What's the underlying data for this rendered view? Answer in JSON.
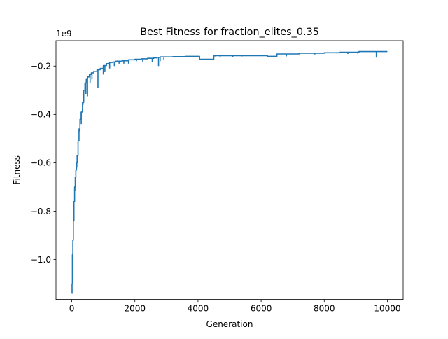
{
  "chart_data": {
    "type": "line",
    "title": "Best Fitness for fraction_elites_0.35",
    "xlabel": "Generation",
    "ylabel": "Fitness",
    "y_offset_label": "1e9",
    "xlim": [
      -500,
      10500
    ],
    "ylim": [
      -1.165,
      -0.095
    ],
    "xticks": [
      0,
      2000,
      4000,
      6000,
      8000,
      10000
    ],
    "xtick_labels": [
      "0",
      "2000",
      "4000",
      "6000",
      "8000",
      "10000"
    ],
    "yticks": [
      -1.0,
      -0.8,
      -0.6,
      -0.4,
      -0.2
    ],
    "ytick_labels": [
      "−1.0",
      "−0.8",
      "−0.6",
      "−0.4",
      "−0.2"
    ],
    "grid": false,
    "series": [
      {
        "color": "#1f77b4",
        "x": [
          0,
          10,
          20,
          35,
          50,
          70,
          90,
          110,
          130,
          150,
          170,
          200,
          230,
          260,
          300,
          340,
          380,
          420,
          460,
          500,
          560,
          620,
          700,
          800,
          900,
          1000,
          1100,
          1200,
          1300,
          1400,
          1600,
          1800,
          2000,
          2200,
          2400,
          2600,
          2700,
          2800,
          3000,
          3200,
          3400,
          3600,
          3800,
          4000,
          4050,
          4400,
          4500,
          4550,
          5000,
          5500,
          6000,
          6200,
          6500,
          6600,
          7000,
          7150,
          7200,
          7500,
          8000,
          8400,
          8500,
          9000,
          9100,
          9500,
          10000
        ],
        "y": [
          -1.14,
          -1.1,
          -0.98,
          -0.92,
          -0.84,
          -0.76,
          -0.7,
          -0.66,
          -0.63,
          -0.6,
          -0.57,
          -0.51,
          -0.46,
          -0.42,
          -0.39,
          -0.35,
          -0.3,
          -0.27,
          -0.255,
          -0.245,
          -0.235,
          -0.228,
          -0.222,
          -0.215,
          -0.21,
          -0.198,
          -0.19,
          -0.185,
          -0.183,
          -0.18,
          -0.178,
          -0.174,
          -0.172,
          -0.17,
          -0.168,
          -0.166,
          -0.164,
          -0.162,
          -0.162,
          -0.161,
          -0.161,
          -0.16,
          -0.16,
          -0.16,
          -0.172,
          -0.172,
          -0.158,
          -0.157,
          -0.157,
          -0.157,
          -0.157,
          -0.16,
          -0.15,
          -0.15,
          -0.15,
          -0.15,
          -0.147,
          -0.147,
          -0.145,
          -0.145,
          -0.143,
          -0.143,
          -0.14,
          -0.14,
          -0.14
        ]
      }
    ],
    "dips": [
      {
        "x": 100,
        "y": -0.715
      },
      {
        "x": 160,
        "y": -0.62
      },
      {
        "x": 240,
        "y": -0.47
      },
      {
        "x": 300,
        "y": -0.44
      },
      {
        "x": 360,
        "y": -0.36
      },
      {
        "x": 420,
        "y": -0.3
      },
      {
        "x": 450,
        "y": -0.315
      },
      {
        "x": 500,
        "y": -0.325
      },
      {
        "x": 580,
        "y": -0.27
      },
      {
        "x": 640,
        "y": -0.255
      },
      {
        "x": 830,
        "y": -0.29
      },
      {
        "x": 1000,
        "y": -0.235
      },
      {
        "x": 1050,
        "y": -0.225
      },
      {
        "x": 1200,
        "y": -0.21
      },
      {
        "x": 1350,
        "y": -0.2
      },
      {
        "x": 1500,
        "y": -0.19
      },
      {
        "x": 1650,
        "y": -0.19
      },
      {
        "x": 1800,
        "y": -0.19
      },
      {
        "x": 2050,
        "y": -0.18
      },
      {
        "x": 2250,
        "y": -0.185
      },
      {
        "x": 2550,
        "y": -0.185
      },
      {
        "x": 2750,
        "y": -0.2
      },
      {
        "x": 2800,
        "y": -0.18
      },
      {
        "x": 2920,
        "y": -0.175
      },
      {
        "x": 3300,
        "y": -0.165
      },
      {
        "x": 4700,
        "y": -0.165
      },
      {
        "x": 5100,
        "y": -0.162
      },
      {
        "x": 5400,
        "y": -0.16
      },
      {
        "x": 6800,
        "y": -0.16
      },
      {
        "x": 7700,
        "y": -0.152
      },
      {
        "x": 8400,
        "y": -0.148
      },
      {
        "x": 8750,
        "y": -0.15
      },
      {
        "x": 9050,
        "y": -0.148
      },
      {
        "x": 9650,
        "y": -0.165
      }
    ]
  }
}
